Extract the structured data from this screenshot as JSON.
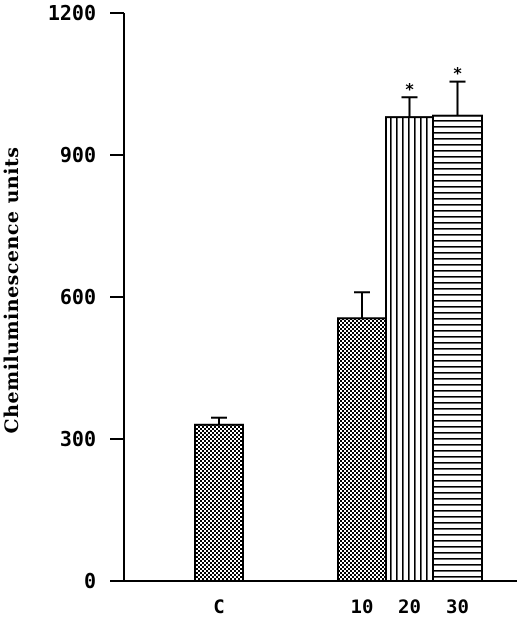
{
  "chart_data": {
    "type": "bar",
    "ylabel": "Chemiluminescence units",
    "xlabel": "",
    "ylim": [
      0,
      1200
    ],
    "yticks": [
      0,
      300,
      600,
      900,
      1200
    ],
    "categories": [
      "C",
      "10",
      "20",
      "30"
    ],
    "values": [
      330,
      555,
      980,
      983
    ],
    "errors": [
      15,
      55,
      42,
      72
    ],
    "patterns": [
      "crosshatch",
      "crosshatch",
      "vertical-lines",
      "horizontal-lines"
    ],
    "significance": [
      "",
      "",
      "*",
      "*"
    ],
    "grid": false
  }
}
